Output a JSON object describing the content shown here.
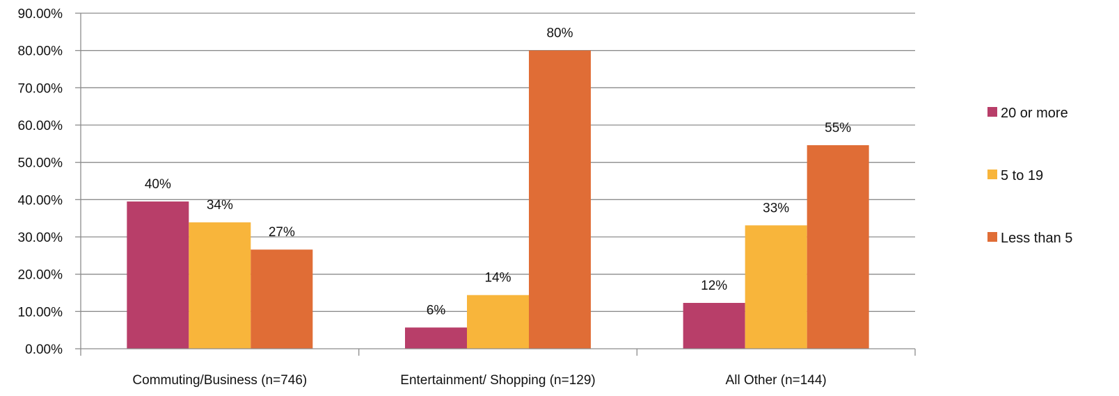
{
  "chart_data": {
    "type": "bar",
    "categories": [
      "Commuting/Business (n=746)",
      "Entertainment/ Shopping (n=129)",
      "All Other (n=144)"
    ],
    "series": [
      {
        "name": "20 or more",
        "values": [
          39.5,
          5.7,
          12.3
        ],
        "labels": [
          "40%",
          "6%",
          "12%"
        ],
        "color": "#b83e69"
      },
      {
        "name": "5 to 19",
        "values": [
          33.9,
          14.4,
          33.1
        ],
        "labels": [
          "34%",
          "14%",
          "33%"
        ],
        "color": "#f8b53b"
      },
      {
        "name": "Less than 5",
        "values": [
          26.6,
          80.0,
          54.6
        ],
        "labels": [
          "27%",
          "80%",
          "55%"
        ],
        "color": "#e06d36"
      }
    ],
    "y_ticks": [
      "0.00%",
      "10.00%",
      "20.00%",
      "30.00%",
      "40.00%",
      "50.00%",
      "60.00%",
      "70.00%",
      "80.00%",
      "90.00%"
    ],
    "ylim": [
      0,
      90
    ],
    "grid": true,
    "legend_position": "right",
    "title": "",
    "xlabel": "",
    "ylabel": ""
  },
  "colors": {
    "gridline": "#8c8c8c",
    "axis": "#8c8c8c",
    "text": "#111111"
  }
}
